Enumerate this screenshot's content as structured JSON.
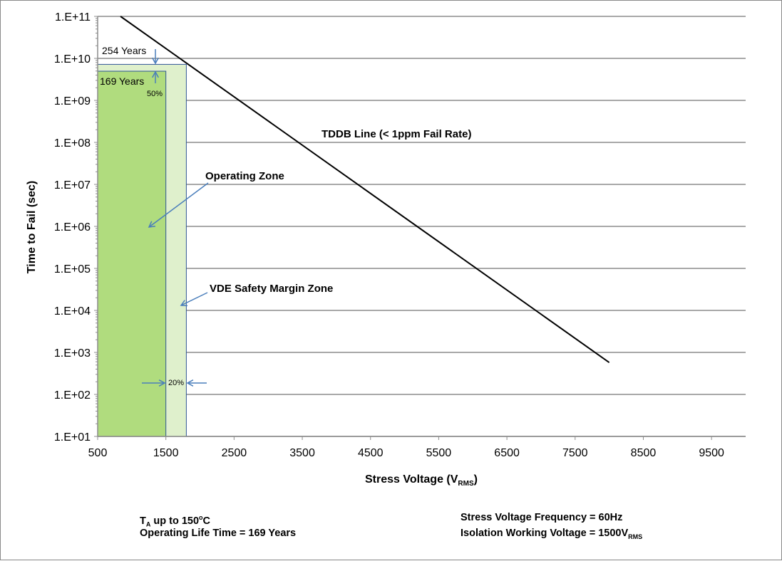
{
  "chart_data": {
    "type": "line",
    "xlabel": "Stress Voltage (V",
    "xlabel_sub": "RMS",
    "xlabel_end": ")",
    "ylabel": "Time to Fail (sec)",
    "xlim": [
      500,
      10000
    ],
    "ylim": [
      10,
      100000000000
    ],
    "y_scale": "log",
    "grid": "horizontal",
    "x_ticks": [
      "500",
      "1500",
      "2500",
      "3500",
      "4500",
      "5500",
      "6500",
      "7500",
      "8500",
      "9500"
    ],
    "y_ticks": [
      "1.E+01",
      "1.E+02",
      "1.E+03",
      "1.E+04",
      "1.E+05",
      "1.E+06",
      "1.E+07",
      "1.E+08",
      "1.E+09",
      "1.E+10",
      "1.E+11"
    ],
    "series": [
      {
        "label": "TDDB Line (< 1ppm Fail Rate)",
        "x": [
          835,
          8000
        ],
        "y": [
          100000000000,
          575
        ],
        "color": "#000000"
      }
    ],
    "zones": [
      {
        "label": "VDE Safety Margin Zone",
        "x": [
          500,
          1800
        ],
        "y_top": 7200000000,
        "color": "#dff0cc"
      },
      {
        "label": "Operating  Zone",
        "x": [
          500,
          1500
        ],
        "y_top": 4950000000,
        "color": "#b0dc7e"
      }
    ],
    "annotations": {
      "years_254": "254 Years",
      "years_169": "169 Years",
      "pct_50": "50%",
      "pct_20": "20%"
    },
    "arrow_color": "#4a7ebb",
    "border_color": "#2f5597"
  },
  "notes": {
    "ta_prefix": "T",
    "ta_sub": "A",
    "ta_mid": " up to 150",
    "ta_sup": "o",
    "ta_end": "C",
    "life": "Operating Life Time = 169 Years",
    "freq": "Stress Voltage Frequency = 60Hz",
    "iso": "Isolation Working Voltage = 1500V",
    "iso_sub": "RMS"
  }
}
